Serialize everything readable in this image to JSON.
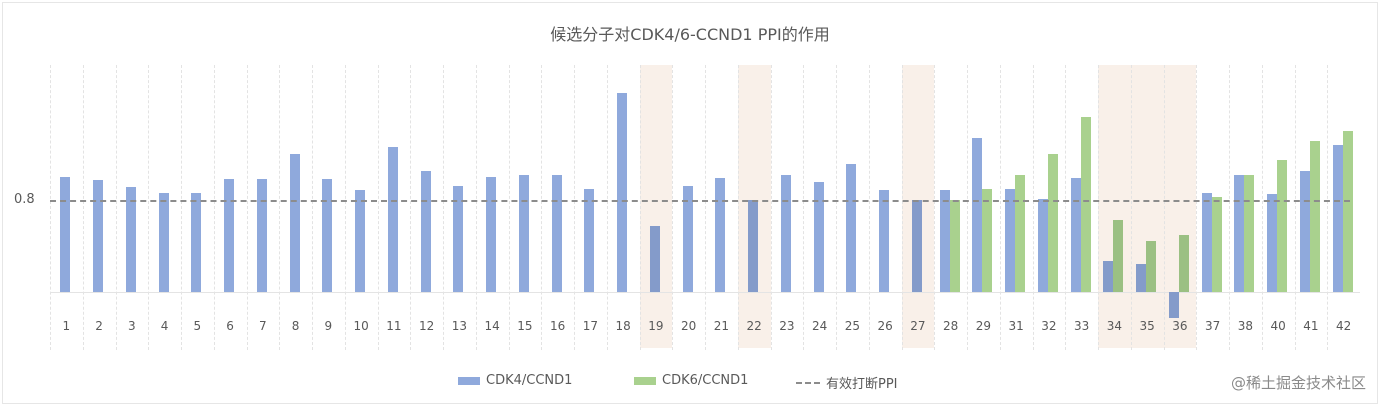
{
  "title": "候选分子对CDK4/6-CCND1 PPI的作用",
  "y_axis": {
    "tick_label": "0.8"
  },
  "legend": {
    "series1": "CDK4/CCND1",
    "series2": "CDK6/CCND1",
    "reference": "有效打断PPI"
  },
  "watermark": "@稀土掘金技术社区",
  "colors": {
    "cdk4": "#8fa9dc",
    "cdk6": "#a9d18e",
    "highlight": "#f5e8de",
    "reference": "#8c8c8c"
  },
  "chart_data": {
    "type": "bar",
    "title": "候选分子对CDK4/6-CCND1 PPI的作用",
    "xlabel": "",
    "ylabel": "",
    "ylim": [
      -0.25,
      2.0
    ],
    "grid": "vertical dashed",
    "legend_position": "bottom",
    "categories": [
      "1",
      "2",
      "3",
      "4",
      "5",
      "6",
      "7",
      "8",
      "9",
      "10",
      "11",
      "12",
      "13",
      "14",
      "15",
      "16",
      "17",
      "18",
      "19",
      "20",
      "21",
      "22",
      "23",
      "24",
      "25",
      "26",
      "27",
      "28",
      "29",
      "31",
      "32",
      "33",
      "34",
      "35",
      "36",
      "37",
      "38",
      "40",
      "41",
      "42"
    ],
    "series": [
      {
        "name": "CDK4/CCND1",
        "values": [
          1.0,
          0.97,
          0.91,
          0.86,
          0.86,
          0.98,
          0.98,
          1.2,
          0.98,
          0.89,
          1.26,
          1.05,
          0.92,
          1.0,
          1.02,
          1.02,
          0.9,
          1.73,
          0.57,
          0.92,
          0.99,
          0.8,
          1.02,
          0.96,
          1.11,
          0.89,
          0.8,
          0.89,
          1.34,
          0.9,
          0.81,
          0.99,
          0.27,
          0.24,
          -0.23,
          0.86,
          1.02,
          0.85,
          1.05,
          1.28
        ]
      },
      {
        "name": "CDK6/CCND1",
        "values": [
          null,
          null,
          null,
          null,
          null,
          null,
          null,
          null,
          null,
          null,
          null,
          null,
          null,
          null,
          null,
          null,
          null,
          null,
          null,
          null,
          null,
          null,
          null,
          null,
          null,
          null,
          null,
          0.8,
          0.9,
          1.02,
          1.2,
          1.52,
          0.63,
          0.44,
          0.5,
          0.83,
          1.02,
          1.15,
          1.31,
          1.4
        ]
      }
    ],
    "reference_line": {
      "name": "有效打断PPI",
      "value": 0.8
    },
    "highlighted_categories": [
      "19",
      "22",
      "27",
      "34",
      "35",
      "36"
    ],
    "annotations": []
  }
}
